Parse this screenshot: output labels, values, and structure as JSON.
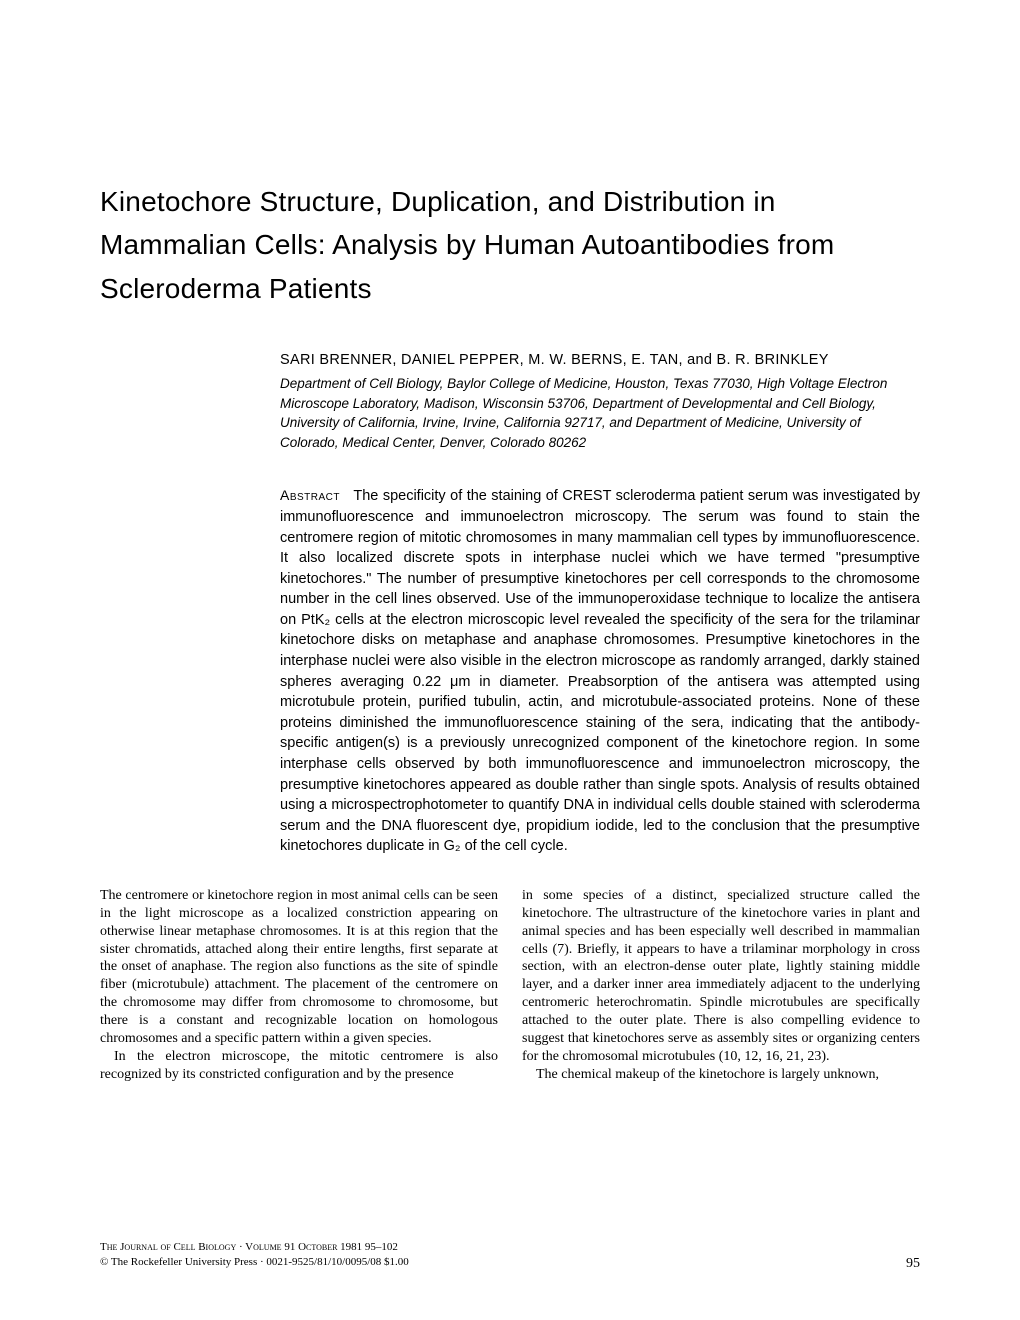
{
  "title": "Kinetochore Structure, Duplication, and Distribution in Mammalian Cells: Analysis by Human Autoantibodies from Scleroderma Patients",
  "authors": "SARI BRENNER, DANIEL PEPPER, M. W. BERNS, E. TAN, and B. R. BRINKLEY",
  "affiliation": "Department of Cell Biology, Baylor College of Medicine, Houston, Texas 77030, High Voltage Electron Microscope Laboratory, Madison, Wisconsin 53706, Department of Developmental and Cell Biology, University of California, Irvine, Irvine, California 92717, and Department of Medicine, University of Colorado, Medical Center, Denver, Colorado 80262",
  "abstract_label": "Abstract",
  "abstract": "The specificity of the staining of CREST scleroderma patient serum was investigated by immunofluorescence and immunoelectron microscopy. The serum was found to stain the centromere region of mitotic chromosomes in many mammalian cell types by immunofluorescence. It also localized discrete spots in interphase nuclei which we have termed \"presumptive kinetochores.\" The number of presumptive kinetochores per cell corresponds to the chromosome number in the cell lines observed. Use of the immunoperoxidase technique to localize the antisera on PtK₂ cells at the electron microscopic level revealed the specificity of the sera for the trilaminar kinetochore disks on metaphase and anaphase chromosomes. Presumptive kinetochores in the interphase nuclei were also visible in the electron microscope as randomly arranged, darkly stained spheres averaging 0.22 μm in diameter. Preabsorption of the antisera was attempted using microtubule protein, purified tubulin, actin, and microtubule-associated proteins. None of these proteins diminished the immunofluorescence staining of the sera, indicating that the antibody-specific antigen(s) is a previously unrecognized component of the kinetochore region. In some interphase cells observed by both immunofluorescence and immunoelectron microscopy, the presumptive kinetochores appeared as double rather than single spots. Analysis of results obtained using a microspectrophotometer to quantify DNA in individual cells double stained with scleroderma serum and the DNA fluorescent dye, propidium iodide, led to the conclusion that the presumptive kinetochores duplicate in G₂ of the cell cycle.",
  "body": {
    "left_p1": "The centromere or kinetochore region in most animal cells can be seen in the light microscope as a localized constriction appearing on otherwise linear metaphase chromosomes. It is at this region that the sister chromatids, attached along their entire lengths, first separate at the onset of anaphase. The region also functions as the site of spindle fiber (microtubule) attachment. The placement of the centromere on the chromosome may differ from chromosome to chromosome, but there is a constant and recognizable location on homologous chromosomes and a specific pattern within a given species.",
    "left_p2": "In the electron microscope, the mitotic centromere is also recognized by its constricted configuration and by the presence",
    "right_p1": "in some species of a distinct, specialized structure called the kinetochore. The ultrastructure of the kinetochore varies in plant and animal species and has been especially well described in mammalian cells (7). Briefly, it appears to have a trilaminar morphology in cross section, with an electron-dense outer plate, lightly staining middle layer, and a darker inner area immediately adjacent to the underlying centromeric heterochromatin. Spindle microtubules are specifically attached to the outer plate. There is also compelling evidence to suggest that kinetochores serve as assembly sites or organizing centers for the chromosomal microtubules (10, 12, 16, 21, 23).",
    "right_p2": "The chemical makeup of the kinetochore is largely unknown,"
  },
  "footer": {
    "line1_pre": "The Journal of Cell Biology · Volume",
    "line1_vol": " 91 ",
    "line1_post": "October 1981 95–102",
    "line2": "© The Rockefeller University Press · 0021-9525/81/10/0095/08 $1.00",
    "page": "95"
  }
}
